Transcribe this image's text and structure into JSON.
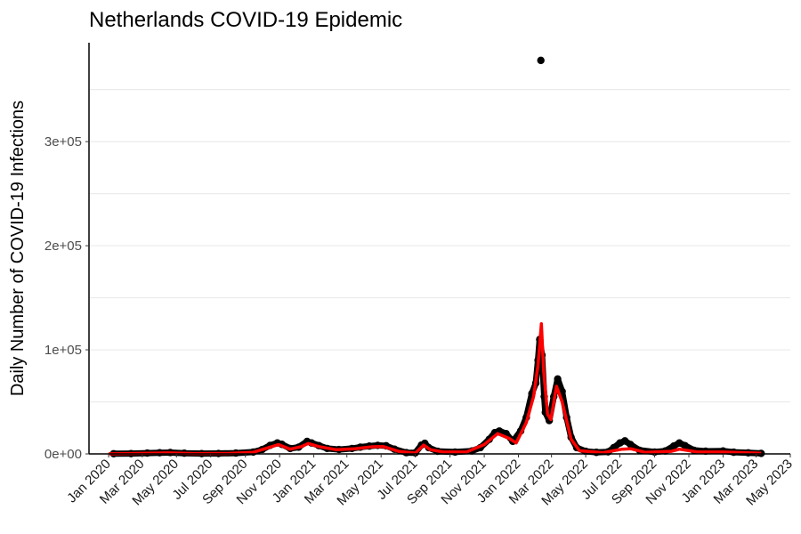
{
  "chart_data": {
    "type": "scatter",
    "title": "Netherlands COVID-19 Epidemic",
    "xlabel": "",
    "ylabel": "Daily Number of COVID-19 Infections",
    "xlim": [
      "2019-11-27",
      "2023-05-01"
    ],
    "ylim": [
      0,
      395000
    ],
    "grid": "horizontal",
    "y_ticks": [
      {
        "value": 0,
        "label": "0e+00"
      },
      {
        "value": 100000,
        "label": "1e+05"
      },
      {
        "value": 200000,
        "label": "2e+05"
      },
      {
        "value": 300000,
        "label": "3e+05"
      }
    ],
    "x_ticks": [
      {
        "date": "2020-01-01",
        "label": "Jan 2020"
      },
      {
        "date": "2020-03-01",
        "label": "Mar 2020"
      },
      {
        "date": "2020-05-01",
        "label": "May 2020"
      },
      {
        "date": "2020-07-01",
        "label": "Jul 2020"
      },
      {
        "date": "2020-09-01",
        "label": "Sep 2020"
      },
      {
        "date": "2020-11-01",
        "label": "Nov 2020"
      },
      {
        "date": "2021-01-01",
        "label": "Jan 2021"
      },
      {
        "date": "2021-03-01",
        "label": "Mar 2021"
      },
      {
        "date": "2021-05-01",
        "label": "May 2021"
      },
      {
        "date": "2021-07-01",
        "label": "Jul 2021"
      },
      {
        "date": "2021-09-01",
        "label": "Sep 2021"
      },
      {
        "date": "2021-11-01",
        "label": "Nov 2021"
      },
      {
        "date": "2022-01-01",
        "label": "Jan 2022"
      },
      {
        "date": "2022-03-01",
        "label": "Mar 2022"
      },
      {
        "date": "2022-05-01",
        "label": "May 2022"
      },
      {
        "date": "2022-07-01",
        "label": "Jul 2022"
      },
      {
        "date": "2022-09-01",
        "label": "Sep 2022"
      },
      {
        "date": "2022-11-01",
        "label": "Nov 2022"
      },
      {
        "date": "2023-01-01",
        "label": "Jan 2023"
      },
      {
        "date": "2023-03-01",
        "label": "Mar 2023"
      },
      {
        "date": "2023-05-01",
        "label": "May 2023"
      }
    ],
    "series": [
      {
        "kind": "points",
        "color": "#000000",
        "points": [
          {
            "x": "2020-01-10",
            "y": 200
          },
          {
            "x": "2020-02-10",
            "y": 300
          },
          {
            "x": "2020-03-10",
            "y": 800
          },
          {
            "x": "2020-04-01",
            "y": 1100
          },
          {
            "x": "2020-04-20",
            "y": 1300
          },
          {
            "x": "2020-05-15",
            "y": 700
          },
          {
            "x": "2020-06-15",
            "y": 300
          },
          {
            "x": "2020-07-15",
            "y": 400
          },
          {
            "x": "2020-08-15",
            "y": 800
          },
          {
            "x": "2020-09-15",
            "y": 1800
          },
          {
            "x": "2020-10-01",
            "y": 4200
          },
          {
            "x": "2020-10-15",
            "y": 8200
          },
          {
            "x": "2020-10-28",
            "y": 10500
          },
          {
            "x": "2020-11-05",
            "y": 9200
          },
          {
            "x": "2020-11-20",
            "y": 5200
          },
          {
            "x": "2020-12-05",
            "y": 6500
          },
          {
            "x": "2020-12-20",
            "y": 12000
          },
          {
            "x": "2020-12-28",
            "y": 10500
          },
          {
            "x": "2021-01-10",
            "y": 8000
          },
          {
            "x": "2021-01-25",
            "y": 5200
          },
          {
            "x": "2021-02-15",
            "y": 4200
          },
          {
            "x": "2021-03-10",
            "y": 5200
          },
          {
            "x": "2021-03-25",
            "y": 6500
          },
          {
            "x": "2021-04-10",
            "y": 7500
          },
          {
            "x": "2021-04-25",
            "y": 8200
          },
          {
            "x": "2021-05-10",
            "y": 7800
          },
          {
            "x": "2021-05-25",
            "y": 4500
          },
          {
            "x": "2021-06-15",
            "y": 1200
          },
          {
            "x": "2021-07-01",
            "y": 1000
          },
          {
            "x": "2021-07-12",
            "y": 8500
          },
          {
            "x": "2021-07-18",
            "y": 10200
          },
          {
            "x": "2021-07-25",
            "y": 6000
          },
          {
            "x": "2021-08-10",
            "y": 2500
          },
          {
            "x": "2021-09-10",
            "y": 1800
          },
          {
            "x": "2021-10-10",
            "y": 2800
          },
          {
            "x": "2021-10-25",
            "y": 6000
          },
          {
            "x": "2021-11-10",
            "y": 14000
          },
          {
            "x": "2021-11-20",
            "y": 20500
          },
          {
            "x": "2021-11-28",
            "y": 22000
          },
          {
            "x": "2021-12-10",
            "y": 19500
          },
          {
            "x": "2021-12-22",
            "y": 12000
          },
          {
            "x": "2022-01-05",
            "y": 22000
          },
          {
            "x": "2022-01-15",
            "y": 35000
          },
          {
            "x": "2022-01-25",
            "y": 58000
          },
          {
            "x": "2022-02-01",
            "y": 68000
          },
          {
            "x": "2022-02-05",
            "y": 90000
          },
          {
            "x": "2022-02-08",
            "y": 110000
          },
          {
            "x": "2022-02-10",
            "y": 378000
          },
          {
            "x": "2022-02-12",
            "y": 95000
          },
          {
            "x": "2022-02-16",
            "y": 55000
          },
          {
            "x": "2022-02-18",
            "y": 40000
          },
          {
            "x": "2022-02-25",
            "y": 32000
          },
          {
            "x": "2022-03-05",
            "y": 55000
          },
          {
            "x": "2022-03-12",
            "y": 72000
          },
          {
            "x": "2022-03-20",
            "y": 60000
          },
          {
            "x": "2022-03-28",
            "y": 35000
          },
          {
            "x": "2022-04-05",
            "y": 16000
          },
          {
            "x": "2022-04-15",
            "y": 6000
          },
          {
            "x": "2022-05-01",
            "y": 2500
          },
          {
            "x": "2022-05-20",
            "y": 1500
          },
          {
            "x": "2022-06-10",
            "y": 2000
          },
          {
            "x": "2022-06-20",
            "y": 6000
          },
          {
            "x": "2022-07-01",
            "y": 10500
          },
          {
            "x": "2022-07-10",
            "y": 12500
          },
          {
            "x": "2022-07-20",
            "y": 9000
          },
          {
            "x": "2022-08-05",
            "y": 3500
          },
          {
            "x": "2022-09-01",
            "y": 1800
          },
          {
            "x": "2022-09-20",
            "y": 2800
          },
          {
            "x": "2022-10-05",
            "y": 7500
          },
          {
            "x": "2022-10-15",
            "y": 10500
          },
          {
            "x": "2022-10-25",
            "y": 8000
          },
          {
            "x": "2022-11-10",
            "y": 3500
          },
          {
            "x": "2022-12-01",
            "y": 2600
          },
          {
            "x": "2023-01-01",
            "y": 2800
          },
          {
            "x": "2023-01-20",
            "y": 1600
          },
          {
            "x": "2023-02-15",
            "y": 1000
          },
          {
            "x": "2023-03-10",
            "y": 500
          }
        ]
      },
      {
        "kind": "line",
        "color": "#ff0000",
        "points": [
          {
            "x": "2020-01-01",
            "y": 100
          },
          {
            "x": "2020-03-01",
            "y": 500
          },
          {
            "x": "2020-04-15",
            "y": 900
          },
          {
            "x": "2020-06-01",
            "y": 300
          },
          {
            "x": "2020-08-01",
            "y": 400
          },
          {
            "x": "2020-09-15",
            "y": 1500
          },
          {
            "x": "2020-10-15",
            "y": 6500
          },
          {
            "x": "2020-10-30",
            "y": 9000
          },
          {
            "x": "2020-11-20",
            "y": 4500
          },
          {
            "x": "2020-12-10",
            "y": 7000
          },
          {
            "x": "2020-12-22",
            "y": 10000
          },
          {
            "x": "2021-01-10",
            "y": 7000
          },
          {
            "x": "2021-02-10",
            "y": 4000
          },
          {
            "x": "2021-03-15",
            "y": 5000
          },
          {
            "x": "2021-04-15",
            "y": 6800
          },
          {
            "x": "2021-05-05",
            "y": 7000
          },
          {
            "x": "2021-06-01",
            "y": 2500
          },
          {
            "x": "2021-07-01",
            "y": 800
          },
          {
            "x": "2021-07-16",
            "y": 8500
          },
          {
            "x": "2021-07-28",
            "y": 4000
          },
          {
            "x": "2021-08-20",
            "y": 1800
          },
          {
            "x": "2021-10-01",
            "y": 2000
          },
          {
            "x": "2021-11-01",
            "y": 9000
          },
          {
            "x": "2021-11-25",
            "y": 19500
          },
          {
            "x": "2021-12-15",
            "y": 15000
          },
          {
            "x": "2021-12-28",
            "y": 10500
          },
          {
            "x": "2022-01-15",
            "y": 30000
          },
          {
            "x": "2022-01-28",
            "y": 55000
          },
          {
            "x": "2022-02-05",
            "y": 85000
          },
          {
            "x": "2022-02-11",
            "y": 125000
          },
          {
            "x": "2022-02-15",
            "y": 80000
          },
          {
            "x": "2022-02-22",
            "y": 38000
          },
          {
            "x": "2022-02-28",
            "y": 33000
          },
          {
            "x": "2022-03-10",
            "y": 65000
          },
          {
            "x": "2022-03-20",
            "y": 50000
          },
          {
            "x": "2022-04-05",
            "y": 14000
          },
          {
            "x": "2022-04-20",
            "y": 3000
          },
          {
            "x": "2022-06-01",
            "y": 1200
          },
          {
            "x": "2022-07-05",
            "y": 4500
          },
          {
            "x": "2022-07-20",
            "y": 5000
          },
          {
            "x": "2022-08-15",
            "y": 1500
          },
          {
            "x": "2022-10-01",
            "y": 2500
          },
          {
            "x": "2022-10-15",
            "y": 4500
          },
          {
            "x": "2022-11-15",
            "y": 2000
          },
          {
            "x": "2023-01-01",
            "y": 1800
          },
          {
            "x": "2023-03-10",
            "y": 600
          }
        ]
      }
    ]
  }
}
